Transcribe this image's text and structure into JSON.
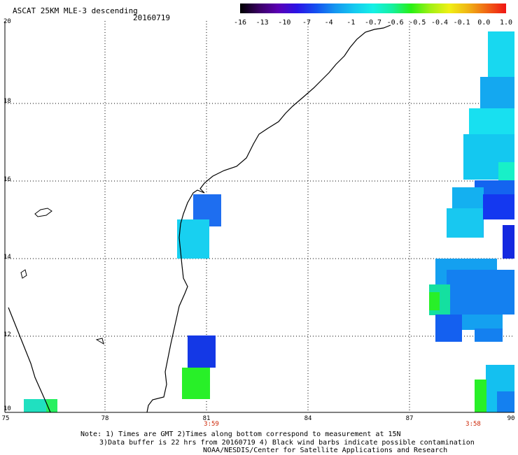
{
  "header": {
    "title": "ASCAT 25KM MLE-3 descending",
    "date": "20160719"
  },
  "colorbar": {
    "ticks": [
      "-16",
      "-13",
      "-10",
      "-7",
      "-4",
      "-1",
      "-0.7",
      "-0.6",
      "-0.5",
      "-0.4",
      "-0.1",
      "0.0",
      "1.0"
    ],
    "colors": [
      "#000000",
      "#3a0064",
      "#5a00b4",
      "#2a14e6",
      "#1450f0",
      "#1496f0",
      "#14c8f0",
      "#14f0e6",
      "#14f0a0",
      "#28f014",
      "#a0f014",
      "#f0f014",
      "#f0b414",
      "#f06414",
      "#f01414"
    ]
  },
  "axes": {
    "y_labels": [
      "20",
      "18",
      "16",
      "14",
      "12",
      "10"
    ],
    "x_labels": [
      "75",
      "78",
      "81",
      "84",
      "87",
      "90"
    ],
    "times": [
      "3:59",
      "3:58"
    ]
  },
  "notes": {
    "line1": "Note: 1) Times are GMT 2)Times along bottom correspond to measurement at 15N",
    "line2": "3)Data buffer is 22 hrs from 20160719 4) Black wind barbs indicate possible contamination",
    "line3": "NOAA/NESDIS/Center for Satellite Applications and Research"
  }
}
